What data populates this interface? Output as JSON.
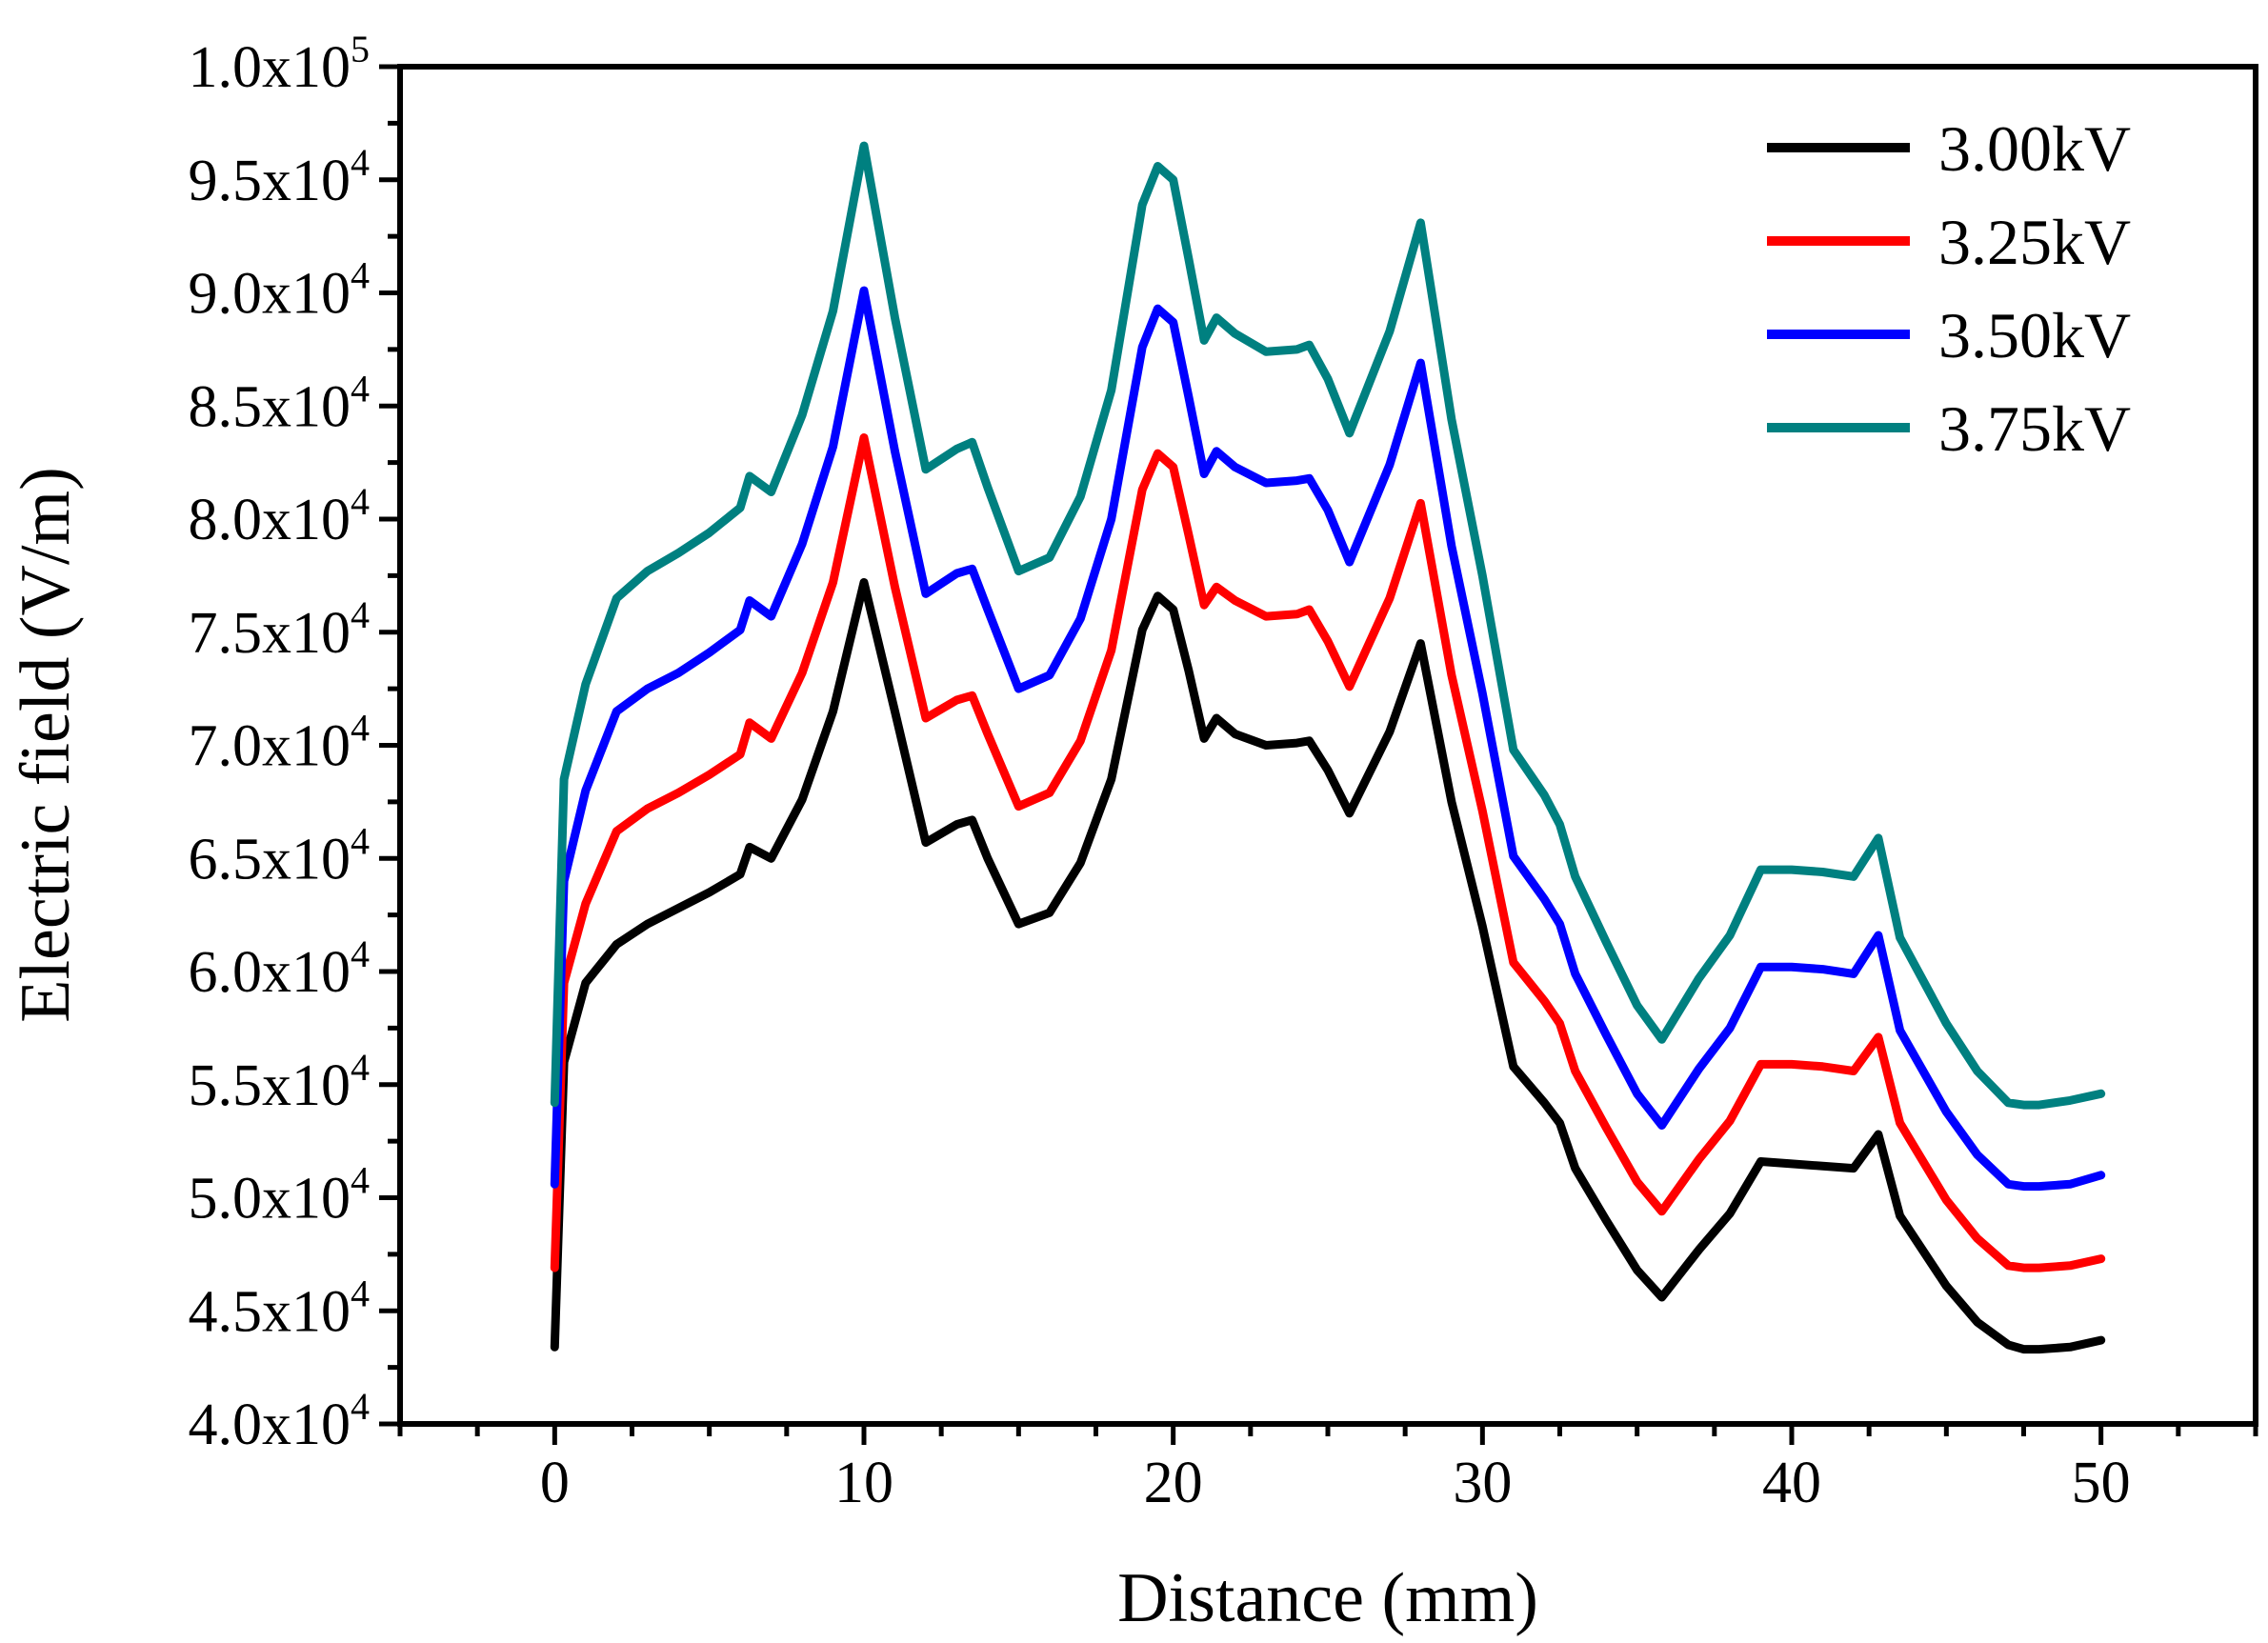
{
  "chart_data": {
    "type": "line",
    "title": "",
    "xlabel": "Distance (mm)",
    "ylabel": "Electric field (V/m)",
    "xlim": [
      -5,
      55
    ],
    "ylim": [
      40000,
      100000
    ],
    "x_ticks": [
      0,
      10,
      20,
      30,
      40,
      50
    ],
    "x_tick_labels": [
      "0",
      "10",
      "20",
      "30",
      "40",
      "50"
    ],
    "y_ticks": [
      40000,
      45000,
      50000,
      55000,
      60000,
      65000,
      70000,
      75000,
      80000,
      85000,
      90000,
      95000,
      100000
    ],
    "y_tick_labels": [
      {
        "mantissa": "4.0x10",
        "exp": "4"
      },
      {
        "mantissa": "4.5x10",
        "exp": "4"
      },
      {
        "mantissa": "5.0x10",
        "exp": "4"
      },
      {
        "mantissa": "5.5x10",
        "exp": "4"
      },
      {
        "mantissa": "6.0x10",
        "exp": "4"
      },
      {
        "mantissa": "6.5x10",
        "exp": "4"
      },
      {
        "mantissa": "7.0x10",
        "exp": "4"
      },
      {
        "mantissa": "7.5x10",
        "exp": "4"
      },
      {
        "mantissa": "8.0x10",
        "exp": "4"
      },
      {
        "mantissa": "8.5x10",
        "exp": "4"
      },
      {
        "mantissa": "9.0x10",
        "exp": "4"
      },
      {
        "mantissa": "9.5x10",
        "exp": "4"
      },
      {
        "mantissa": "1.0x10",
        "exp": "5"
      }
    ],
    "legend_position": "top-right",
    "x": [
      0,
      0.3,
      1,
      2,
      3,
      4,
      5,
      6,
      6.3,
      7,
      8,
      9,
      10,
      11,
      12,
      13,
      13.5,
      14,
      15,
      16,
      17,
      18,
      19,
      19.5,
      20,
      20.5,
      21,
      21.4,
      22,
      23,
      24,
      24.4,
      25,
      25.7,
      27,
      28,
      29,
      30,
      31,
      32,
      32.5,
      33,
      34,
      35,
      35.8,
      37,
      38,
      39,
      40,
      41,
      42,
      42.8,
      43.5,
      45,
      46,
      47,
      47.5,
      48,
      49,
      50
    ],
    "series": [
      {
        "name": "3.00kV",
        "color": "#000000",
        "values": [
          43400,
          56000,
          59500,
          61200,
          62100,
          62800,
          63500,
          64300,
          65500,
          65000,
          67600,
          71500,
          77200,
          71500,
          65700,
          66500,
          66700,
          65000,
          62100,
          62600,
          64800,
          68500,
          75100,
          76600,
          76000,
          73300,
          70300,
          71200,
          70500,
          70000,
          70100,
          70200,
          68900,
          67000,
          70600,
          74500,
          67500,
          62000,
          55800,
          54200,
          53300,
          51300,
          49000,
          46800,
          45600,
          47700,
          49300,
          51600,
          51500,
          51400,
          51300,
          52800,
          49200,
          46100,
          44500,
          43500,
          43300,
          43300,
          43400,
          43700
        ]
      },
      {
        "name": "3.25kV",
        "color": "#ff0000",
        "values": [
          46900,
          59500,
          63000,
          66200,
          67200,
          67900,
          68700,
          69600,
          71000,
          70300,
          73200,
          77200,
          83600,
          77000,
          71200,
          72000,
          72200,
          70500,
          67300,
          67900,
          70200,
          74200,
          81300,
          82900,
          82300,
          79300,
          76200,
          77000,
          76400,
          75700,
          75800,
          76000,
          74600,
          72600,
          76500,
          80700,
          73100,
          67100,
          60400,
          58700,
          57700,
          55600,
          53100,
          50700,
          49400,
          51700,
          53400,
          55900,
          55900,
          55800,
          55600,
          57100,
          53300,
          49900,
          48200,
          47000,
          46900,
          46900,
          47000,
          47300
        ]
      },
      {
        "name": "3.50kV",
        "color": "#0000ff",
        "values": [
          50600,
          64000,
          68000,
          71500,
          72500,
          73200,
          74100,
          75100,
          76400,
          75700,
          78900,
          83200,
          90100,
          83000,
          76700,
          77600,
          77800,
          76000,
          72500,
          73100,
          75600,
          80000,
          87600,
          89300,
          88700,
          85400,
          82000,
          83000,
          82300,
          81600,
          81700,
          81800,
          80400,
          78100,
          82400,
          86900,
          78800,
          72300,
          65100,
          63200,
          62100,
          59900,
          57200,
          54600,
          53200,
          55700,
          57500,
          60200,
          60200,
          60100,
          59900,
          61600,
          57400,
          53800,
          51900,
          50600,
          50500,
          50500,
          50600,
          51000
        ]
      },
      {
        "name": "3.75kV",
        "color": "#008080",
        "values": [
          54200,
          68500,
          72700,
          76500,
          77700,
          78500,
          79400,
          80500,
          81900,
          81200,
          84600,
          89200,
          96500,
          88900,
          82200,
          83100,
          83400,
          81400,
          77700,
          78300,
          81000,
          85700,
          93900,
          95600,
          95000,
          91500,
          87900,
          88900,
          88200,
          87400,
          87500,
          87700,
          86200,
          83800,
          88300,
          93100,
          84400,
          77500,
          69800,
          67800,
          66500,
          64200,
          61300,
          58500,
          57000,
          59700,
          61600,
          64500,
          64500,
          64400,
          64200,
          65900,
          61500,
          57700,
          55600,
          54200,
          54100,
          54100,
          54300,
          54600
        ]
      }
    ]
  }
}
